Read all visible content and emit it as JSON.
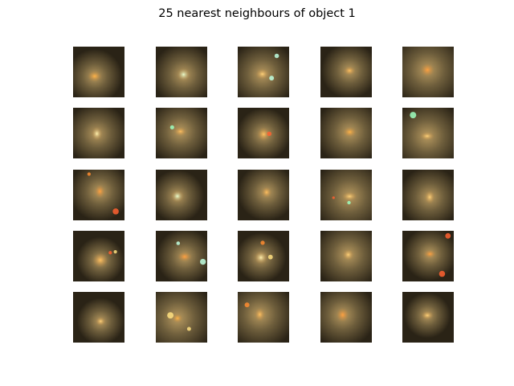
{
  "title": "25 nearest neighbours of object 1"
}
